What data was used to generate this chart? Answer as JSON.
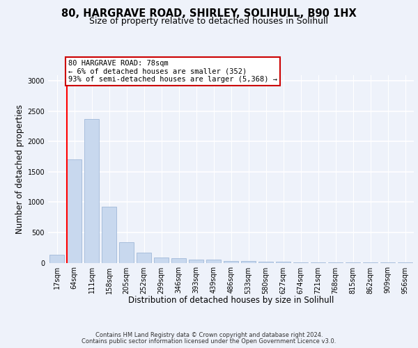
{
  "title1": "80, HARGRAVE ROAD, SHIRLEY, SOLIHULL, B90 1HX",
  "title2": "Size of property relative to detached houses in Solihull",
  "xlabel": "Distribution of detached houses by size in Solihull",
  "ylabel": "Number of detached properties",
  "categories": [
    "17sqm",
    "64sqm",
    "111sqm",
    "158sqm",
    "205sqm",
    "252sqm",
    "299sqm",
    "346sqm",
    "393sqm",
    "439sqm",
    "486sqm",
    "533sqm",
    "580sqm",
    "627sqm",
    "674sqm",
    "721sqm",
    "768sqm",
    "815sqm",
    "862sqm",
    "909sqm",
    "956sqm"
  ],
  "values": [
    130,
    1700,
    2370,
    920,
    340,
    165,
    82,
    80,
    55,
    50,
    30,
    28,
    20,
    15,
    10,
    8,
    6,
    5,
    4,
    3,
    3
  ],
  "bar_color": "#c8d8ee",
  "bar_edge_color": "#a0b8d8",
  "red_line_index": 1,
  "annotation_line1": "80 HARGRAVE ROAD: 78sqm",
  "annotation_line2": "← 6% of detached houses are smaller (352)",
  "annotation_line3": "93% of semi-detached houses are larger (5,368) →",
  "annotation_box_color": "#ffffff",
  "annotation_box_edge": "#cc0000",
  "ylim": [
    0,
    3100
  ],
  "yticks": [
    0,
    500,
    1000,
    1500,
    2000,
    2500,
    3000
  ],
  "footer1": "Contains HM Land Registry data © Crown copyright and database right 2024.",
  "footer2": "Contains public sector information licensed under the Open Government Licence v3.0.",
  "bg_color": "#eef2fa",
  "plot_bg_color": "#eef2fa",
  "grid_color": "#ffffff",
  "title1_fontsize": 10.5,
  "title2_fontsize": 9,
  "tick_fontsize": 7,
  "ylabel_fontsize": 8.5,
  "xlabel_fontsize": 8.5,
  "footer_fontsize": 6.0
}
